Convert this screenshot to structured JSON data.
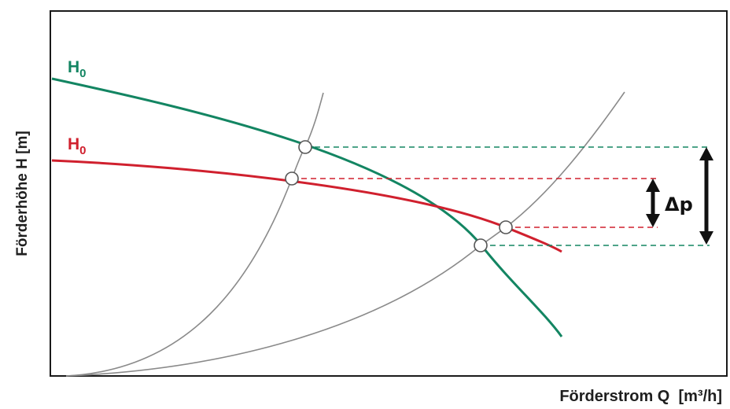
{
  "chart_data": {
    "type": "line",
    "title": "",
    "xlabel": "Förderstrom Q  [m³/h]",
    "ylabel": "Förderhöhe H [m]",
    "grid": false,
    "ticks": false,
    "colors": {
      "pump_curve_1": "#138562",
      "pump_curve_2": "#d0202e",
      "system_curve": "#8a8a8a",
      "frame": "#1a1a1a",
      "delta_arrow": "#111111"
    },
    "series": [
      {
        "name": "H0",
        "label_main": "H",
        "label_sub": "0",
        "color": "#138562"
      },
      {
        "name": "H0",
        "label_main": "H",
        "label_sub": "0",
        "color": "#d0202e"
      }
    ],
    "annotations": {
      "delta_p": "Δp"
    }
  }
}
